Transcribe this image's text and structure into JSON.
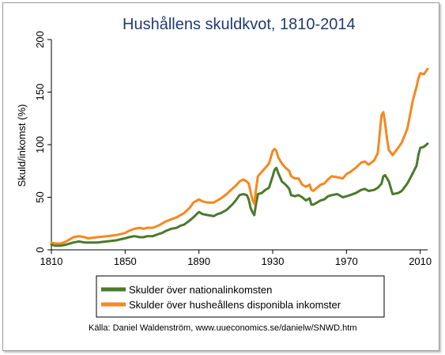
{
  "chart_data": {
    "type": "line",
    "title": "Hushållens skuldkvot, 1810-2014",
    "xlabel": "",
    "ylabel": "Skuld/inkomst (%)",
    "xlim": [
      1810,
      2014
    ],
    "ylim": [
      0,
      200
    ],
    "xticks": [
      "1810",
      "1850",
      "1890",
      "1930",
      "1970",
      "2010"
    ],
    "yticks": [
      "0",
      "50",
      "100",
      "150",
      "200"
    ],
    "grid": false,
    "legend_position": "bottom",
    "series": [
      {
        "name": "Skulder över nationalinkomsten",
        "color": "#4a7a2c",
        "x": [
          1810,
          1812,
          1815,
          1818,
          1820,
          1822,
          1825,
          1828,
          1830,
          1835,
          1840,
          1845,
          1850,
          1852,
          1855,
          1858,
          1860,
          1862,
          1865,
          1868,
          1870,
          1872,
          1875,
          1878,
          1880,
          1882,
          1885,
          1887,
          1890,
          1892,
          1895,
          1898,
          1900,
          1902,
          1905,
          1908,
          1910,
          1912,
          1914,
          1916,
          1917,
          1918,
          1919,
          1920,
          1921,
          1922,
          1924,
          1926,
          1928,
          1930,
          1931,
          1932,
          1933,
          1935,
          1937,
          1939,
          1940,
          1942,
          1944,
          1946,
          1948,
          1950,
          1951,
          1952,
          1954,
          1956,
          1958,
          1960,
          1962,
          1965,
          1968,
          1970,
          1972,
          1975,
          1978,
          1980,
          1982,
          1985,
          1987,
          1989,
          1990,
          1991,
          1992,
          1993,
          1995,
          1998,
          2000,
          2003,
          2006,
          2008,
          2009,
          2010,
          2012,
          2014
        ],
        "values": [
          5,
          4,
          4,
          5,
          6,
          7,
          8,
          7,
          7,
          7,
          8,
          9,
          11,
          12,
          13,
          12,
          12,
          13,
          13,
          15,
          16,
          18,
          20,
          21,
          23,
          24,
          28,
          31,
          36,
          34,
          33,
          32,
          34,
          35,
          38,
          43,
          47,
          52,
          53,
          52,
          48,
          40,
          36,
          33,
          44,
          53,
          54,
          57,
          59,
          70,
          76,
          78,
          73,
          65,
          62,
          58,
          52,
          51,
          52,
          50,
          47,
          49,
          43,
          43,
          45,
          47,
          48,
          51,
          52,
          53,
          50,
          51,
          52,
          54,
          57,
          58,
          56,
          57,
          59,
          63,
          70,
          71,
          68,
          65,
          53,
          54,
          56,
          63,
          73,
          80,
          90,
          97,
          98,
          101
        ]
      },
      {
        "name": "Skulder över husheållens disponibla inkomster",
        "color": "#f7871f",
        "x": [
          1810,
          1812,
          1815,
          1818,
          1820,
          1822,
          1825,
          1828,
          1830,
          1835,
          1840,
          1845,
          1850,
          1852,
          1855,
          1858,
          1860,
          1862,
          1865,
          1868,
          1870,
          1872,
          1875,
          1878,
          1880,
          1882,
          1885,
          1887,
          1890,
          1892,
          1895,
          1898,
          1900,
          1902,
          1905,
          1908,
          1910,
          1912,
          1914,
          1916,
          1917,
          1918,
          1919,
          1920,
          1921,
          1922,
          1924,
          1926,
          1928,
          1930,
          1931,
          1932,
          1933,
          1935,
          1937,
          1939,
          1940,
          1942,
          1944,
          1946,
          1948,
          1950,
          1951,
          1952,
          1954,
          1956,
          1958,
          1960,
          1962,
          1965,
          1968,
          1970,
          1972,
          1975,
          1978,
          1980,
          1982,
          1985,
          1987,
          1988,
          1989,
          1990,
          1991,
          1992,
          1993,
          1995,
          1998,
          2000,
          2003,
          2006,
          2008,
          2009,
          2010,
          2012,
          2014
        ],
        "values": [
          7,
          6,
          6,
          8,
          10,
          12,
          13,
          12,
          11,
          12,
          13,
          14,
          16,
          18,
          20,
          21,
          20,
          21,
          21,
          23,
          25,
          27,
          29,
          31,
          33,
          35,
          40,
          45,
          48,
          46,
          45,
          45,
          47,
          49,
          53,
          58,
          61,
          65,
          67,
          65,
          63,
          55,
          48,
          44,
          58,
          70,
          74,
          78,
          82,
          94,
          96,
          94,
          88,
          82,
          78,
          75,
          70,
          68,
          68,
          62,
          60,
          62,
          57,
          56,
          59,
          62,
          63,
          67,
          70,
          69,
          68,
          72,
          74,
          78,
          83,
          84,
          81,
          85,
          92,
          110,
          128,
          131,
          120,
          105,
          95,
          90,
          97,
          102,
          115,
          142,
          155,
          163,
          168,
          167,
          172
        ]
      }
    ],
    "source_note": "Källa: Daniel Waldenström, www.uueconomics.se/danielw/SNWD.htm"
  }
}
